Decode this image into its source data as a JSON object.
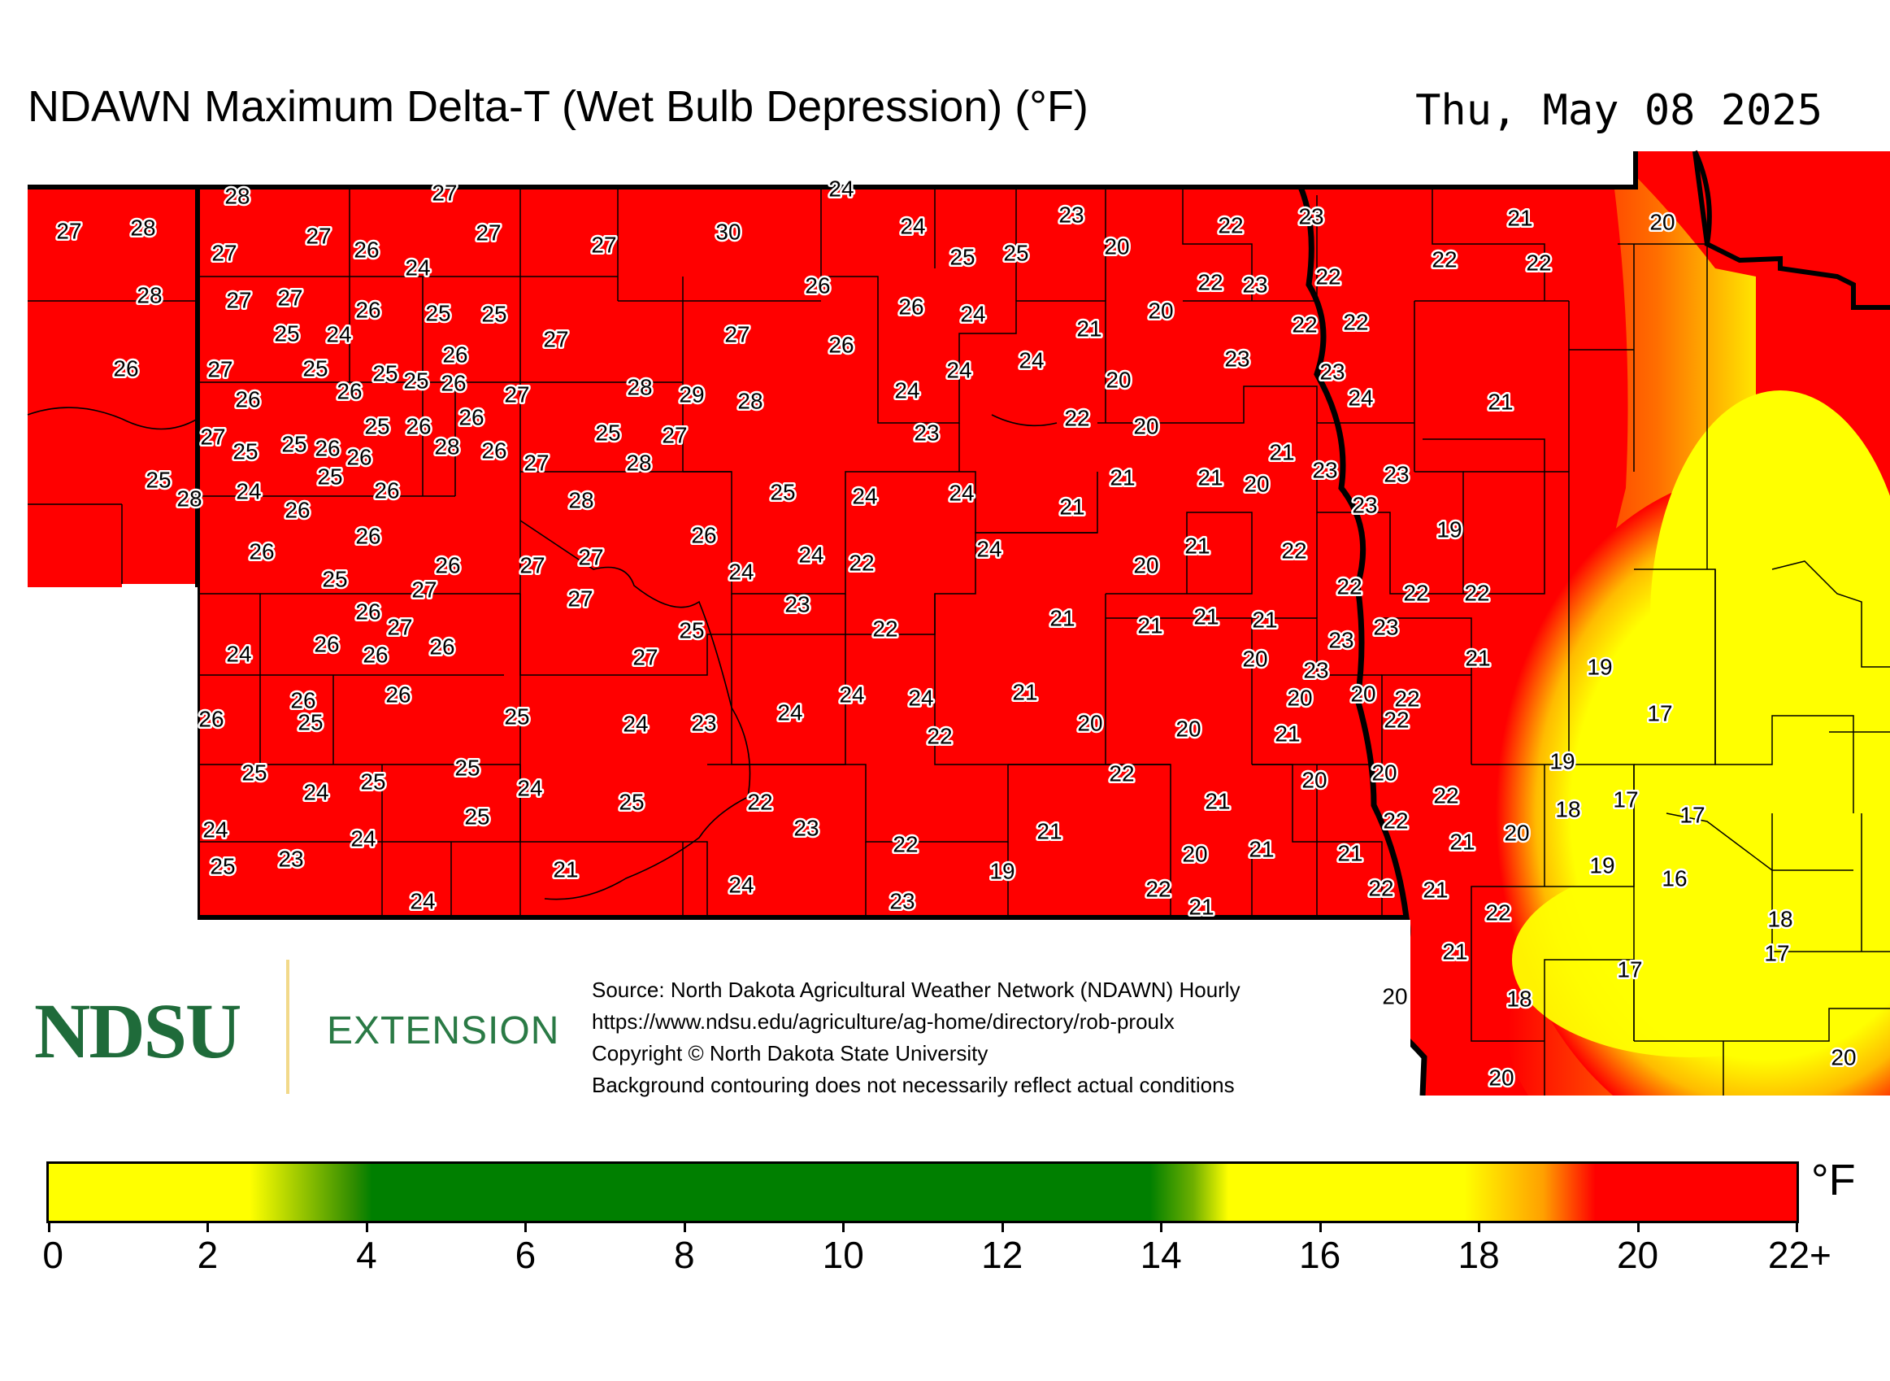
{
  "title": "NDAWN Maximum Delta-T (Wet Bulb Depression) (°F)",
  "date": "Thu, May 08 2025",
  "logo": {
    "name": "NDSU",
    "sub": "EXTENSION"
  },
  "notes": [
    "Source: North Dakota Agricultural Weather Network (NDAWN) Hourly",
    "https://www.ndsu.edu/agriculture/ag-home/directory/rob-proulx",
    "Copyright © North Dakota State University",
    "Background contouring does not necessarily reflect actual conditions"
  ],
  "colorbar": {
    "unit": "°F",
    "ticks": [
      "0",
      "2",
      "4",
      "6",
      "8",
      "10",
      "12",
      "14",
      "16",
      "18",
      "20",
      "22+"
    ],
    "colors": {
      "low": "#ffff00",
      "mid": "#007f00",
      "high": "#ff0000"
    }
  },
  "stations": [
    [
      "27",
      85,
      286
    ],
    [
      "28",
      176,
      282
    ],
    [
      "28",
      292,
      243
    ],
    [
      "27",
      547,
      239
    ],
    [
      "24",
      1035,
      234
    ],
    [
      "27",
      276,
      313
    ],
    [
      "27",
      392,
      292
    ],
    [
      "26",
      451,
      309
    ],
    [
      "24",
      514,
      331
    ],
    [
      "27",
      601,
      288
    ],
    [
      "27",
      743,
      303
    ],
    [
      "30",
      896,
      287
    ],
    [
      "24",
      1123,
      280
    ],
    [
      "25",
      1184,
      318
    ],
    [
      "25",
      1250,
      313
    ],
    [
      "23",
      1318,
      266
    ],
    [
      "20",
      1374,
      305
    ],
    [
      "22",
      1514,
      279
    ],
    [
      "23",
      1613,
      268
    ],
    [
      "21",
      1870,
      270
    ],
    [
      "20",
      2045,
      275
    ],
    [
      "28",
      184,
      365
    ],
    [
      "27",
      294,
      371
    ],
    [
      "27",
      357,
      368
    ],
    [
      "25",
      353,
      412
    ],
    [
      "24",
      417,
      413
    ],
    [
      "26",
      453,
      383
    ],
    [
      "25",
      539,
      387
    ],
    [
      "25",
      608,
      388
    ],
    [
      "27",
      684,
      419
    ],
    [
      "26",
      1006,
      353
    ],
    [
      "26",
      1121,
      379
    ],
    [
      "24",
      1197,
      388
    ],
    [
      "22",
      1489,
      349
    ],
    [
      "23",
      1544,
      352
    ],
    [
      "22",
      1634,
      342
    ],
    [
      "22",
      1777,
      321
    ],
    [
      "22",
      1893,
      325
    ],
    [
      "26",
      155,
      455
    ],
    [
      "27",
      271,
      456
    ],
    [
      "25",
      388,
      455
    ],
    [
      "26",
      305,
      493
    ],
    [
      "26",
      430,
      483
    ],
    [
      "25",
      474,
      461
    ],
    [
      "25",
      512,
      470
    ],
    [
      "26",
      560,
      438
    ],
    [
      "26",
      558,
      473
    ],
    [
      "27",
      636,
      487
    ],
    [
      "27",
      907,
      413
    ],
    [
      "26",
      1035,
      426
    ],
    [
      "20",
      1428,
      384
    ],
    [
      "21",
      1340,
      406
    ],
    [
      "22",
      1605,
      401
    ],
    [
      "22",
      1668,
      398
    ],
    [
      "28",
      787,
      478
    ],
    [
      "29",
      851,
      487
    ],
    [
      "28",
      923,
      495
    ],
    [
      "24",
      1116,
      482
    ],
    [
      "24",
      1180,
      457
    ],
    [
      "24",
      1269,
      445
    ],
    [
      "20",
      1376,
      469
    ],
    [
      "23",
      1522,
      443
    ],
    [
      "23",
      1639,
      459
    ],
    [
      "24",
      1674,
      491
    ],
    [
      "21",
      1846,
      496
    ],
    [
      "27",
      262,
      539
    ],
    [
      "25",
      302,
      557
    ],
    [
      "25",
      362,
      548
    ],
    [
      "26",
      403,
      553
    ],
    [
      "26",
      442,
      564
    ],
    [
      "25",
      464,
      526
    ],
    [
      "26",
      515,
      526
    ],
    [
      "28",
      550,
      551
    ],
    [
      "26",
      580,
      515
    ],
    [
      "26",
      608,
      556
    ],
    [
      "27",
      660,
      571
    ],
    [
      "25",
      748,
      534
    ],
    [
      "27",
      830,
      537
    ],
    [
      "28",
      786,
      571
    ],
    [
      "22",
      1325,
      516
    ],
    [
      "23",
      1140,
      534
    ],
    [
      "20",
      1410,
      526
    ],
    [
      "25",
      195,
      592
    ],
    [
      "28",
      233,
      615
    ],
    [
      "24",
      306,
      606
    ],
    [
      "26",
      366,
      629
    ],
    [
      "25",
      406,
      588
    ],
    [
      "26",
      476,
      605
    ],
    [
      "28",
      715,
      617
    ],
    [
      "25",
      963,
      607
    ],
    [
      "24",
      1064,
      612
    ],
    [
      "24",
      1183,
      608
    ],
    [
      "21",
      1319,
      625
    ],
    [
      "21",
      1381,
      589
    ],
    [
      "21",
      1489,
      589
    ],
    [
      "20",
      1546,
      597
    ],
    [
      "21",
      1577,
      558
    ],
    [
      "23",
      1630,
      580
    ],
    [
      "23",
      1718,
      585
    ],
    [
      "26",
      322,
      680
    ],
    [
      "26",
      453,
      661
    ],
    [
      "26",
      551,
      697
    ],
    [
      "27",
      522,
      727
    ],
    [
      "27",
      655,
      697
    ],
    [
      "27",
      727,
      687
    ],
    [
      "26",
      866,
      660
    ],
    [
      "24",
      1217,
      677
    ],
    [
      "24",
      912,
      705
    ],
    [
      "24",
      998,
      684
    ],
    [
      "22",
      1060,
      694
    ],
    [
      "20",
      1410,
      697
    ],
    [
      "21",
      1473,
      673
    ],
    [
      "22",
      1592,
      679
    ],
    [
      "23",
      1679,
      623
    ],
    [
      "19",
      1783,
      653
    ],
    [
      "25",
      412,
      714
    ],
    [
      "26",
      453,
      754
    ],
    [
      "27",
      492,
      773
    ],
    [
      "26",
      402,
      794
    ],
    [
      "27",
      714,
      738
    ],
    [
      "23",
      981,
      745
    ],
    [
      "25",
      851,
      777
    ],
    [
      "22",
      1089,
      775
    ],
    [
      "21",
      1307,
      762
    ],
    [
      "21",
      1415,
      771
    ],
    [
      "21",
      1484,
      760
    ],
    [
      "21",
      1556,
      764
    ],
    [
      "22",
      1660,
      723
    ],
    [
      "22",
      1742,
      731
    ],
    [
      "22",
      1817,
      731
    ],
    [
      "24",
      294,
      806
    ],
    [
      "26",
      462,
      807
    ],
    [
      "26",
      544,
      797
    ],
    [
      "27",
      794,
      810
    ],
    [
      "23",
      1650,
      789
    ],
    [
      "23",
      1705,
      773
    ],
    [
      "20",
      1544,
      812
    ],
    [
      "21",
      1818,
      811
    ],
    [
      "26",
      373,
      863
    ],
    [
      "25",
      382,
      890
    ],
    [
      "26",
      260,
      886
    ],
    [
      "26",
      490,
      856
    ],
    [
      "25",
      636,
      883
    ],
    [
      "24",
      782,
      892
    ],
    [
      "23",
      866,
      891
    ],
    [
      "24",
      972,
      878
    ],
    [
      "24",
      1048,
      856
    ],
    [
      "24",
      1133,
      860
    ],
    [
      "21",
      1261,
      853
    ],
    [
      "20",
      1341,
      891
    ],
    [
      "22",
      1156,
      907
    ],
    [
      "20",
      1462,
      898
    ],
    [
      "20",
      1599,
      860
    ],
    [
      "23",
      1619,
      826
    ],
    [
      "20",
      1677,
      855
    ],
    [
      "22",
      1731,
      861
    ],
    [
      "22",
      1718,
      887
    ],
    [
      "21",
      1584,
      904
    ],
    [
      "19",
      1968,
      822
    ],
    [
      "17",
      2042,
      879
    ],
    [
      "25",
      313,
      952
    ],
    [
      "24",
      389,
      976
    ],
    [
      "25",
      459,
      963
    ],
    [
      "25",
      575,
      946
    ],
    [
      "24",
      652,
      971
    ],
    [
      "25",
      777,
      988
    ],
    [
      "25",
      587,
      1006
    ],
    [
      "22",
      935,
      988
    ],
    [
      "22",
      1380,
      953
    ],
    [
      "20",
      1617,
      961
    ],
    [
      "21",
      1498,
      987
    ],
    [
      "20",
      1703,
      952
    ],
    [
      "22",
      1779,
      980
    ],
    [
      "19",
      1922,
      938
    ],
    [
      "18",
      1929,
      997
    ],
    [
      "17",
      2000,
      985
    ],
    [
      "17",
      2082,
      1004
    ],
    [
      "24",
      265,
      1022
    ],
    [
      "24",
      447,
      1033
    ],
    [
      "23",
      358,
      1058
    ],
    [
      "25",
      274,
      1067
    ],
    [
      "21",
      696,
      1071
    ],
    [
      "23",
      992,
      1020
    ],
    [
      "22",
      1114,
      1040
    ],
    [
      "21",
      1291,
      1024
    ],
    [
      "20",
      1470,
      1052
    ],
    [
      "21",
      1552,
      1046
    ],
    [
      "21",
      1661,
      1051
    ],
    [
      "22",
      1717,
      1011
    ],
    [
      "21",
      1799,
      1037
    ],
    [
      "20",
      1866,
      1026
    ],
    [
      "19",
      1971,
      1066
    ],
    [
      "16",
      2060,
      1082
    ],
    [
      "24",
      520,
      1110
    ],
    [
      "24",
      912,
      1090
    ],
    [
      "23",
      1110,
      1110
    ],
    [
      "19",
      1233,
      1073
    ],
    [
      "22",
      1425,
      1095
    ],
    [
      "21",
      1478,
      1117
    ],
    [
      "22",
      1699,
      1094
    ],
    [
      "21",
      1766,
      1096
    ],
    [
      "22",
      1843,
      1124
    ],
    [
      "18",
      2190,
      1132
    ],
    [
      "21",
      1790,
      1172
    ],
    [
      "17",
      2005,
      1194
    ],
    [
      "17",
      2186,
      1174
    ],
    [
      "20",
      1716,
      1227
    ],
    [
      "18",
      1869,
      1230
    ],
    [
      "20",
      1847,
      1327
    ],
    [
      "20",
      2268,
      1302
    ]
  ]
}
